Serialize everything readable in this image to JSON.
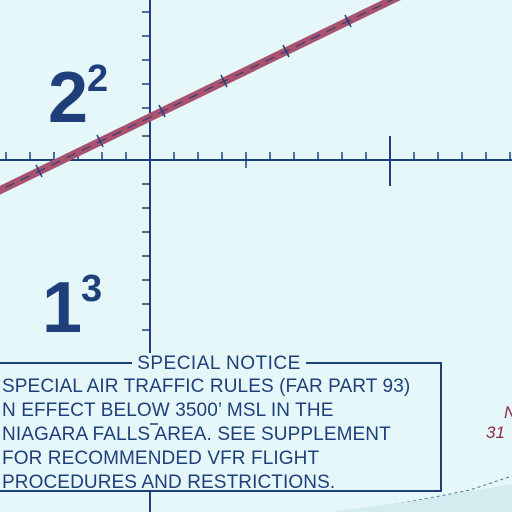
{
  "map": {
    "background_color": "#e6f7f9",
    "grid_color": "#1e3f7a",
    "airway_color": "#a8526f",
    "label_color": "#1e3f7a"
  },
  "max_elevation_figures": [
    {
      "id": "upper",
      "thousands": "2",
      "hundreds": "2"
    },
    {
      "id": "lower",
      "thousands": "1",
      "hundreds": "3"
    }
  ],
  "special_notice": {
    "title": "SPECIAL NOTICE",
    "lines": [
      "SPECIAL AIR TRAFFIC RULES (FAR PART 93)",
      "N EFFECT BELOW 3500’ MSL IN THE",
      "NIAGARA FALLS AREA. SEE SUPPLEMENT",
      "FOR RECOMMENDED VFR FLIGHT",
      "PROCEDURES AND RESTRICTIONS."
    ]
  },
  "edge_labels": [
    "N",
    "31"
  ]
}
